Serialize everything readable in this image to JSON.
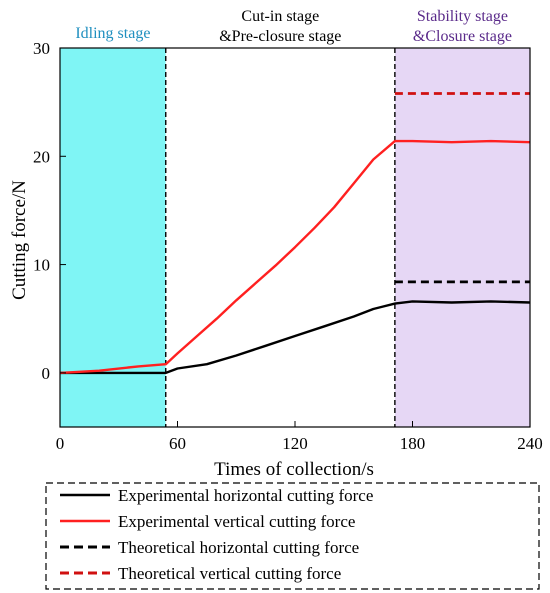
{
  "chart_data": {
    "type": "line",
    "xlabel": "Times of collection/s",
    "ylabel": "Cutting force/N",
    "xlim": [
      0,
      240
    ],
    "ylim": [
      -5,
      30
    ],
    "xticks": [
      0,
      60,
      120,
      180,
      240
    ],
    "yticks": [
      0,
      10,
      20,
      30
    ],
    "regions": [
      {
        "x": [
          0,
          54
        ],
        "label_lines": [
          "Idling stage"
        ],
        "fill": "#7ff5f5",
        "label_color": "#1f8fbf"
      },
      {
        "x": [
          54,
          171
        ],
        "label_lines": [
          "Cut-in stage",
          "&Pre-closure stage"
        ],
        "fill": "#ffffff",
        "label_color": "#000000"
      },
      {
        "x": [
          171,
          240
        ],
        "label_lines": [
          "Stability stage",
          "&Closure stage"
        ],
        "fill": "#e6d7f5",
        "label_color": "#5a2a8a"
      }
    ],
    "boundaries": [
      54,
      171
    ],
    "series": [
      {
        "name": "Experimental horizontal cutting force",
        "color": "#000000",
        "dash": "solid",
        "x": [
          0,
          54,
          60,
          75,
          90,
          105,
          120,
          135,
          150,
          160,
          171,
          180,
          200,
          220,
          240
        ],
        "y": [
          0.0,
          0.0,
          0.4,
          0.8,
          1.6,
          2.5,
          3.4,
          4.3,
          5.2,
          5.9,
          6.4,
          6.6,
          6.5,
          6.6,
          6.5
        ]
      },
      {
        "name": "Experimental vertical cutting force",
        "color": "#ff2020",
        "dash": "solid",
        "x": [
          0,
          20,
          40,
          54,
          60,
          70,
          80,
          90,
          100,
          110,
          120,
          130,
          140,
          150,
          160,
          171,
          180,
          200,
          220,
          240
        ],
        "y": [
          0.0,
          0.2,
          0.6,
          0.8,
          1.8,
          3.4,
          5.0,
          6.7,
          8.3,
          9.9,
          11.6,
          13.4,
          15.3,
          17.5,
          19.7,
          21.4,
          21.4,
          21.3,
          21.4,
          21.3
        ]
      },
      {
        "name": "Theoretical horizontal cutting force",
        "color": "#000000",
        "dash": "dashed",
        "x": [
          171,
          240
        ],
        "y": [
          8.4,
          8.4
        ]
      },
      {
        "name": "Theoretical vertical cutting force",
        "color": "#d01010",
        "dash": "dashed",
        "x": [
          171,
          240
        ],
        "y": [
          25.8,
          25.8
        ]
      }
    ]
  }
}
